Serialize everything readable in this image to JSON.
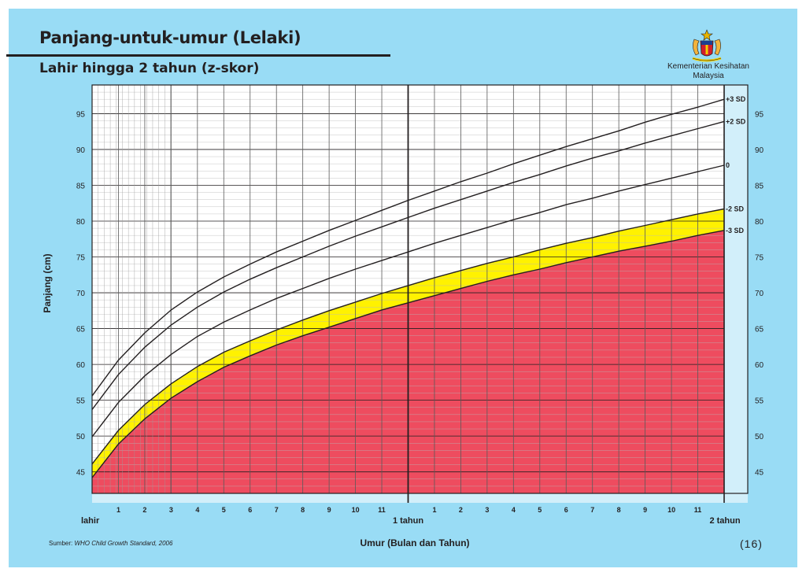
{
  "header": {
    "title": "Panjang-untuk-umur (Lelaki)",
    "subtitle": "Lahir hingga 2 tahun (z-skor)",
    "ministry_line1": "Kementerian Kesihatan",
    "ministry_line2": "Malaysia",
    "crest_icon": "malaysia-coat-of-arms-icon"
  },
  "footer": {
    "source_label": "Sumber:",
    "source_text": "WHO Child Growth Standard, 2006",
    "page_number": "(16)"
  },
  "colors": {
    "background": "#99dcf5",
    "plot": "#ffffff",
    "second_year_band": "#d2effa",
    "yellow_band": "#fff200",
    "red_band": "#ee4c5f",
    "lines": "#231f20"
  },
  "chart_data": {
    "type": "line",
    "title": "Panjang-untuk-umur (Lelaki)",
    "subtitle": "Lahir hingga 2 tahun (z-skor)",
    "xlabel": "Umur (Bulan dan Tahun)",
    "ylabel": "Panjang (cm)",
    "xlim": [
      0,
      24
    ],
    "ylim": [
      42,
      99
    ],
    "grid": true,
    "x_ticks": [
      {
        "x": 0,
        "label": "lahir"
      },
      {
        "x": 1,
        "label": "1"
      },
      {
        "x": 2,
        "label": "2"
      },
      {
        "x": 3,
        "label": "3"
      },
      {
        "x": 4,
        "label": "4"
      },
      {
        "x": 5,
        "label": "5"
      },
      {
        "x": 6,
        "label": "6"
      },
      {
        "x": 7,
        "label": "7"
      },
      {
        "x": 8,
        "label": "8"
      },
      {
        "x": 9,
        "label": "9"
      },
      {
        "x": 10,
        "label": "10"
      },
      {
        "x": 11,
        "label": "11"
      },
      {
        "x": 12,
        "label": "1 tahun"
      },
      {
        "x": 13,
        "label": "1"
      },
      {
        "x": 14,
        "label": "2"
      },
      {
        "x": 15,
        "label": "3"
      },
      {
        "x": 16,
        "label": "4"
      },
      {
        "x": 17,
        "label": "5"
      },
      {
        "x": 18,
        "label": "6"
      },
      {
        "x": 19,
        "label": "7"
      },
      {
        "x": 20,
        "label": "8"
      },
      {
        "x": 21,
        "label": "9"
      },
      {
        "x": 22,
        "label": "10"
      },
      {
        "x": 23,
        "label": "11"
      },
      {
        "x": 24,
        "label": "2 tahun"
      }
    ],
    "y_ticks": [
      45,
      50,
      55,
      60,
      65,
      70,
      75,
      80,
      85,
      90,
      95
    ],
    "x": [
      0,
      1,
      2,
      3,
      4,
      5,
      6,
      7,
      8,
      9,
      10,
      11,
      12,
      13,
      14,
      15,
      16,
      17,
      18,
      19,
      20,
      21,
      22,
      23,
      24
    ],
    "series": [
      {
        "name": "+3 SD",
        "values": [
          55.6,
          60.6,
          64.4,
          67.6,
          70.1,
          72.2,
          74.0,
          75.7,
          77.2,
          78.7,
          80.1,
          81.5,
          82.9,
          84.2,
          85.5,
          86.7,
          88.0,
          89.2,
          90.4,
          91.5,
          92.6,
          93.8,
          94.9,
          95.9,
          97.0
        ]
      },
      {
        "name": "+2 SD",
        "values": [
          53.7,
          58.6,
          62.4,
          65.5,
          68.0,
          70.1,
          71.9,
          73.5,
          75.0,
          76.5,
          77.9,
          79.2,
          80.5,
          81.8,
          83.0,
          84.2,
          85.4,
          86.5,
          87.7,
          88.8,
          89.8,
          90.9,
          91.9,
          92.9,
          93.9
        ]
      },
      {
        "name": "0",
        "values": [
          49.9,
          54.7,
          58.4,
          61.4,
          63.9,
          65.9,
          67.6,
          69.2,
          70.6,
          72.0,
          73.3,
          74.5,
          75.7,
          76.9,
          78.0,
          79.1,
          80.2,
          81.2,
          82.3,
          83.2,
          84.2,
          85.1,
          86.0,
          86.9,
          87.8
        ]
      },
      {
        "name": "-2 SD",
        "values": [
          46.1,
          50.8,
          54.4,
          57.3,
          59.7,
          61.7,
          63.3,
          64.8,
          66.2,
          67.5,
          68.7,
          69.9,
          71.0,
          72.1,
          73.1,
          74.1,
          75.0,
          76.0,
          76.9,
          77.7,
          78.6,
          79.4,
          80.2,
          81.0,
          81.7
        ]
      },
      {
        "name": "-3 SD",
        "values": [
          44.2,
          48.9,
          52.4,
          55.3,
          57.6,
          59.6,
          61.2,
          62.7,
          64.0,
          65.2,
          66.4,
          67.6,
          68.6,
          69.6,
          70.6,
          71.6,
          72.5,
          73.3,
          74.2,
          75.0,
          75.8,
          76.5,
          77.2,
          78.0,
          78.7
        ]
      }
    ]
  }
}
